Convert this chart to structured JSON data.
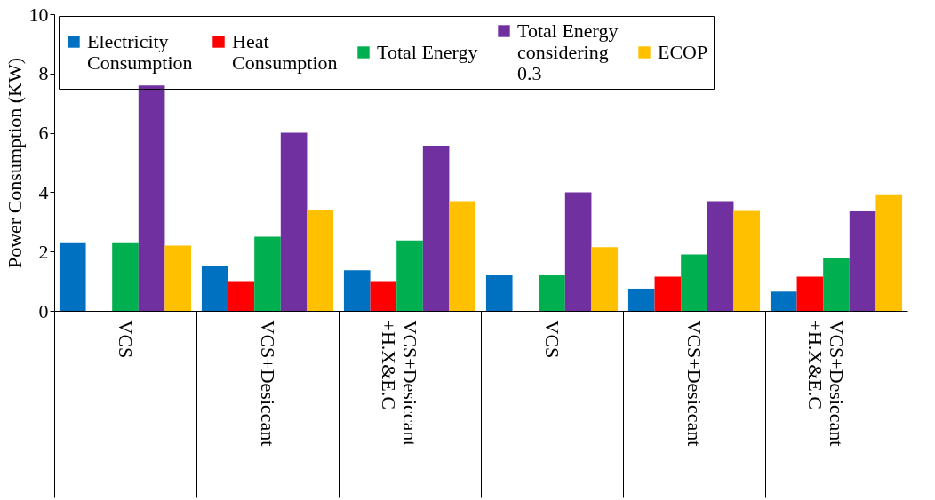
{
  "chart_data": {
    "type": "bar",
    "ylabel": "Power Consumption (KW)",
    "categories": [
      "VCS",
      "VCS+Desiccant",
      "VCS+Desiccant +H.X&E.C",
      "VCS",
      "VCS+Desiccant",
      "VCS+Desiccant +H.X&E.C"
    ],
    "series": [
      {
        "name": "Electricity Consumption",
        "color": "#0070c0",
        "values": [
          2.28,
          1.5,
          1.37,
          1.2,
          0.75,
          0.65
        ]
      },
      {
        "name": "Heat Consumption",
        "color": "#ff0000",
        "values": [
          null,
          1.0,
          1.0,
          null,
          1.15,
          1.15
        ]
      },
      {
        "name": "Total Energy",
        "color": "#00b050",
        "values": [
          2.28,
          2.5,
          2.37,
          1.2,
          1.9,
          1.8
        ]
      },
      {
        "name": "Total Energy considering 0.3",
        "color": "#7030a0",
        "values": [
          7.6,
          6.0,
          5.57,
          4.0,
          3.7,
          3.35
        ]
      },
      {
        "name": "ECOP",
        "color": "#ffc000",
        "values": [
          2.2,
          3.4,
          3.7,
          2.15,
          3.37,
          3.9
        ]
      }
    ],
    "ylim": [
      0,
      10
    ],
    "yticks": [
      0,
      2,
      4,
      6,
      8,
      10
    ],
    "grid": false,
    "legend": "top"
  }
}
